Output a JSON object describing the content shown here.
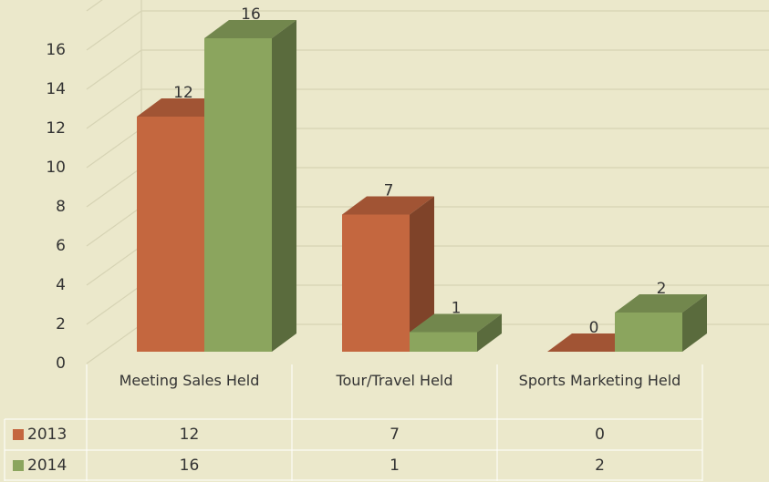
{
  "chart_data": {
    "type": "bar3d",
    "categories": [
      "Meeting Sales Held",
      "Tour/Travel Held",
      "Sports Marketing Held"
    ],
    "series": [
      {
        "name": "2013",
        "color": "#C4673F",
        "values": [
          12,
          7,
          0
        ]
      },
      {
        "name": "2014",
        "color": "#8BA55E",
        "values": [
          16,
          1,
          2
        ]
      }
    ],
    "ylim": [
      0,
      18
    ],
    "yticks": [
      0,
      2,
      4,
      6,
      8,
      10,
      12,
      14,
      16
    ],
    "grid": true,
    "data_table": true
  }
}
